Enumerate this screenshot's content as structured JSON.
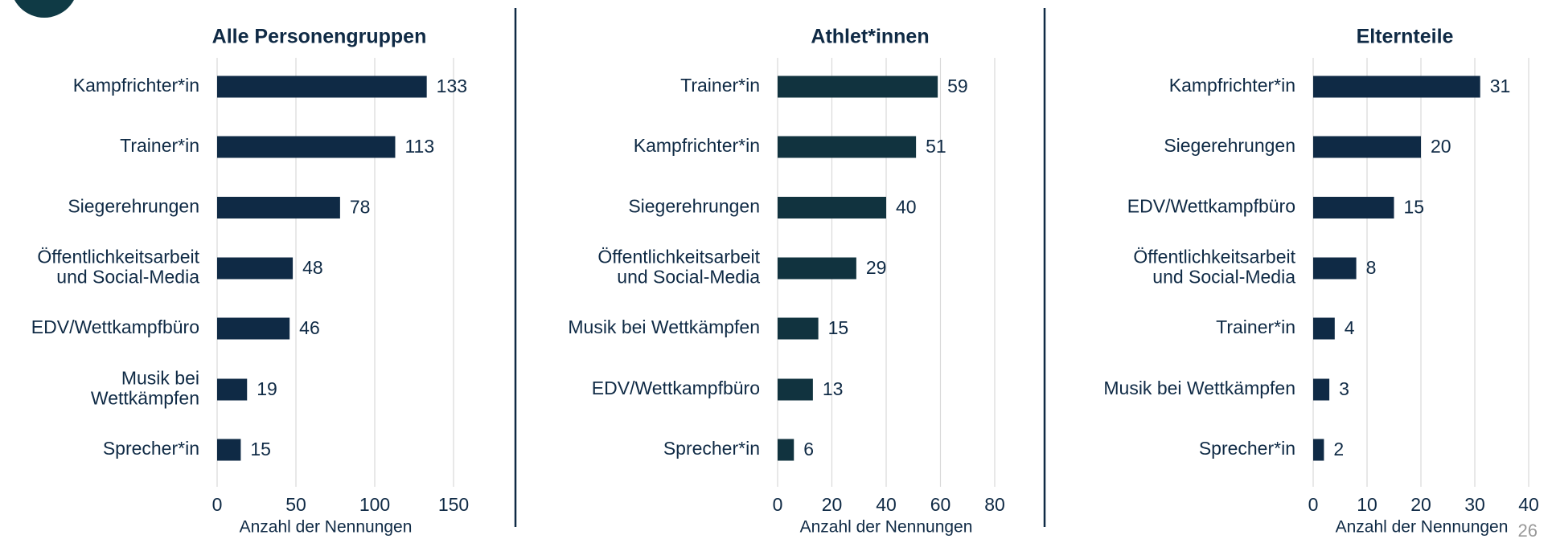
{
  "chart_data": [
    {
      "type": "barh",
      "title": "Alle Personengruppen",
      "xlabel": "Anzahl der Nennungen",
      "categories": [
        "Kampfrichter*in",
        "Trainer*in",
        "Siegerehrungen",
        "Öffentlichkeitsarbeit\nund Social-Media",
        "EDV/Wettkampfbüro",
        "Musik bei\nWettkämpfen",
        "Sprecher*in"
      ],
      "values": [
        133,
        113,
        78,
        48,
        46,
        19,
        15
      ],
      "color": "#0f2a45",
      "xlim": [
        0,
        150
      ],
      "xticks": [
        0,
        50,
        100,
        150
      ],
      "grid": true
    },
    {
      "type": "barh",
      "title": "Athlet*innen",
      "xlabel": "Anzahl der Nennungen",
      "categories": [
        "Trainer*in",
        "Kampfrichter*in",
        "Siegerehrungen",
        "Öffentlichkeitsarbeit\nund Social-Media",
        "Musik bei Wettkämpfen",
        "EDV/Wettkampfbüro",
        "Sprecher*in"
      ],
      "values": [
        59,
        51,
        40,
        29,
        15,
        13,
        6
      ],
      "color": "#11333f",
      "xlim": [
        0,
        80
      ],
      "xticks": [
        0,
        20,
        40,
        60,
        80
      ],
      "grid": true
    },
    {
      "type": "barh",
      "title": "Elternteile",
      "xlabel": "Anzahl der Nennungen",
      "categories": [
        "Kampfrichter*in",
        "Siegerehrungen",
        "EDV/Wettkampfbüro",
        "Öffentlichkeitsarbeit\nund Social-Media",
        "Trainer*in",
        "Musik bei Wettkämpfen",
        "Sprecher*in"
      ],
      "values": [
        31,
        20,
        15,
        8,
        4,
        3,
        2
      ],
      "color": "#0f2a45",
      "xlim": [
        0,
        40
      ],
      "xticks": [
        0,
        10,
        20,
        30,
        40
      ],
      "grid": true
    }
  ],
  "page_number": "26"
}
